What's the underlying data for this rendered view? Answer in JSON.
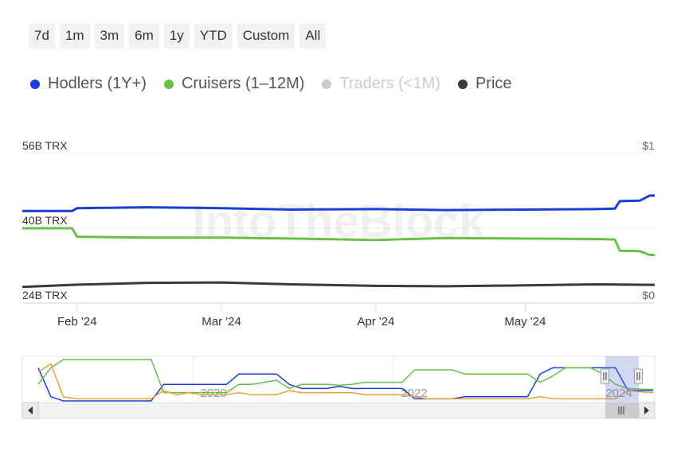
{
  "range_selector": {
    "buttons": [
      "7d",
      "1m",
      "3m",
      "6m",
      "1y",
      "YTD",
      "Custom",
      "All"
    ]
  },
  "watermark": "IntoTheBlock",
  "chart_data": {
    "type": "line",
    "title": "",
    "legend_position": "top-left",
    "grid": true,
    "x_axis": {
      "range": [
        "2024-01-21",
        "2024-05-27"
      ],
      "ticks": [
        {
          "date": "2024-02-01",
          "label": "Feb '24"
        },
        {
          "date": "2024-03-01",
          "label": "Mar '24"
        },
        {
          "date": "2024-04-01",
          "label": "Apr '24"
        },
        {
          "date": "2024-05-01",
          "label": "May '24"
        }
      ]
    },
    "y_axis_left": {
      "ticks": [
        "24B TRX",
        "40B TRX",
        "56B TRX"
      ],
      "range": [
        24,
        56
      ],
      "unit": "B TRX"
    },
    "y_axis_right": {
      "ticks": [
        "$0",
        "$1"
      ],
      "range": [
        0,
        1
      ]
    },
    "series": [
      {
        "name": "Hodlers (1Y+)",
        "color": "#1a3fd8",
        "axis": "left",
        "visible": true,
        "points": [
          [
            "2024-01-21",
            43.7
          ],
          [
            "2024-01-31",
            43.7
          ],
          [
            "2024-02-01",
            44.3
          ],
          [
            "2024-02-15",
            44.5
          ],
          [
            "2024-03-01",
            44.3
          ],
          [
            "2024-03-15",
            44.0
          ],
          [
            "2024-04-01",
            44.1
          ],
          [
            "2024-04-15",
            43.9
          ],
          [
            "2024-05-01",
            44.0
          ],
          [
            "2024-05-15",
            44.1
          ],
          [
            "2024-05-19",
            44.2
          ],
          [
            "2024-05-20",
            45.8
          ],
          [
            "2024-05-24",
            45.9
          ],
          [
            "2024-05-26",
            47.0
          ],
          [
            "2024-05-27",
            47.0
          ]
        ]
      },
      {
        "name": "Cruisers (1–12M)",
        "color": "#6abf4b",
        "axis": "left",
        "visible": true,
        "points": [
          [
            "2024-01-21",
            40.0
          ],
          [
            "2024-01-31",
            40.0
          ],
          [
            "2024-02-01",
            38.2
          ],
          [
            "2024-02-15",
            38.0
          ],
          [
            "2024-03-01",
            38.0
          ],
          [
            "2024-03-15",
            37.8
          ],
          [
            "2024-04-01",
            37.5
          ],
          [
            "2024-04-15",
            37.9
          ],
          [
            "2024-05-01",
            37.8
          ],
          [
            "2024-05-15",
            37.7
          ],
          [
            "2024-05-19",
            37.6
          ],
          [
            "2024-05-20",
            35.2
          ],
          [
            "2024-05-24",
            35.1
          ],
          [
            "2024-05-26",
            34.3
          ],
          [
            "2024-05-27",
            34.3
          ]
        ]
      },
      {
        "name": "Traders (<1M)",
        "color": "#cccccc",
        "axis": "left",
        "visible": false,
        "points": []
      },
      {
        "name": "Price",
        "color": "#3a3a3a",
        "axis": "right",
        "visible": true,
        "points": [
          [
            "2024-01-21",
            0.108
          ],
          [
            "2024-02-01",
            0.123
          ],
          [
            "2024-02-15",
            0.135
          ],
          [
            "2024-03-01",
            0.138
          ],
          [
            "2024-03-15",
            0.125
          ],
          [
            "2024-04-01",
            0.115
          ],
          [
            "2024-04-15",
            0.112
          ],
          [
            "2024-05-01",
            0.118
          ],
          [
            "2024-05-15",
            0.125
          ],
          [
            "2024-05-27",
            0.122
          ]
        ]
      }
    ],
    "navigator": {
      "tick_labels": [
        "2020",
        "2022",
        "2024"
      ],
      "series": [
        {
          "name": "Hodlers (1Y+)",
          "color": "#1a3fd8",
          "values": [
            0.2,
            0.9,
            1.0,
            1.0,
            1.0,
            1.0,
            1.0,
            1.0,
            1.0,
            1.0,
            0.6,
            0.6,
            0.6,
            0.6,
            0.6,
            0.6,
            0.35,
            0.35,
            0.35,
            0.35,
            0.6,
            0.7,
            0.7,
            0.7,
            0.65,
            0.7,
            0.7,
            0.7,
            0.7,
            0.7,
            0.95,
            0.95,
            0.95,
            0.95,
            0.9,
            0.9,
            0.9,
            0.9,
            0.9,
            0.9,
            0.35,
            0.2,
            0.2,
            0.2,
            0.2,
            0.2,
            0.2,
            0.75,
            0.75,
            0.75
          ]
        },
        {
          "name": "Cruisers (1–12M)",
          "color": "#6abf4b",
          "values": [
            0.6,
            0.2,
            0.0,
            0.0,
            0.0,
            0.0,
            0.0,
            0.0,
            0.0,
            0.0,
            0.8,
            0.8,
            0.8,
            0.8,
            0.8,
            0.8,
            0.6,
            0.6,
            0.55,
            0.5,
            0.7,
            0.6,
            0.6,
            0.6,
            0.62,
            0.6,
            0.55,
            0.55,
            0.55,
            0.55,
            0.25,
            0.25,
            0.25,
            0.25,
            0.35,
            0.35,
            0.35,
            0.35,
            0.35,
            0.35,
            0.55,
            0.4,
            0.2,
            0.2,
            0.2,
            0.35,
            0.6,
            0.7,
            0.72,
            0.72
          ]
        },
        {
          "name": "Traders (<1M)",
          "color": "#e8a33a",
          "values": [
            0.3,
            0.1,
            0.9,
            0.95,
            0.95,
            0.95,
            0.95,
            0.95,
            0.95,
            0.95,
            0.75,
            0.85,
            0.8,
            0.85,
            0.85,
            0.85,
            0.8,
            0.85,
            0.85,
            0.85,
            0.75,
            0.8,
            0.8,
            0.8,
            0.8,
            0.8,
            0.85,
            0.85,
            0.85,
            0.85,
            0.9,
            0.95,
            0.95,
            0.95,
            0.95,
            0.95,
            0.95,
            0.95,
            0.95,
            0.95,
            0.9,
            0.95,
            0.95,
            0.95,
            0.95,
            0.95,
            0.95,
            0.75,
            0.78,
            0.8
          ]
        }
      ]
    }
  }
}
